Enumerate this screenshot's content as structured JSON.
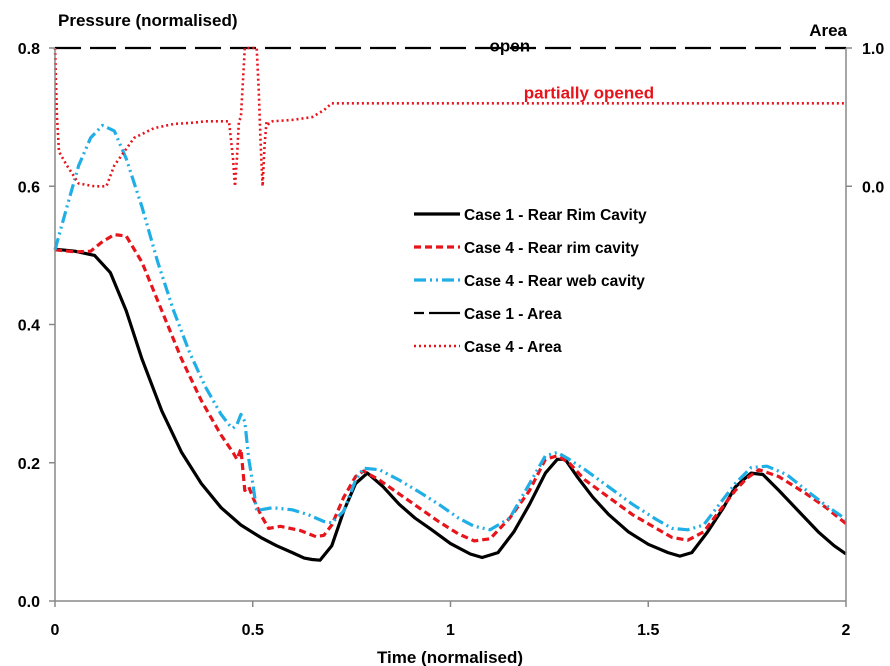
{
  "chart_data": {
    "type": "line",
    "ylabel_left": "Pressure (normalised)",
    "ylabel_right": "Area",
    "xlabel": "Time (normalised)",
    "xlim": [
      0,
      2
    ],
    "ylim": [
      0,
      0.8
    ],
    "y2lim": [
      0.0,
      1.0
    ],
    "y2_plot_min": -3.0,
    "x_ticks": [
      "0",
      "0.5",
      "1",
      "1.5",
      "2"
    ],
    "y_ticks": [
      "0.0",
      "0.2",
      "0.4",
      "0.6",
      "0.8"
    ],
    "y2_ticks": [
      "0.0",
      "1.0"
    ],
    "grid": false,
    "legend_position": "center-right",
    "annotations": [
      {
        "text": "open",
        "x": 1.15,
        "y": 0.795,
        "color": "#000000"
      },
      {
        "text": "partially opened",
        "x": 1.35,
        "y": 0.727,
        "color": "#e8141b"
      }
    ],
    "series": [
      {
        "name": "Case 1 - Rear Rim Cavity",
        "axis": "left",
        "color": "#000000",
        "dash": "",
        "width": 3.2,
        "x": [
          0,
          0.05,
          0.1,
          0.14,
          0.18,
          0.22,
          0.27,
          0.32,
          0.37,
          0.42,
          0.47,
          0.52,
          0.56,
          0.6,
          0.63,
          0.65,
          0.67,
          0.7,
          0.73,
          0.76,
          0.79,
          0.83,
          0.87,
          0.91,
          0.95,
          1.0,
          1.05,
          1.08,
          1.12,
          1.16,
          1.2,
          1.24,
          1.27,
          1.29,
          1.32,
          1.36,
          1.4,
          1.45,
          1.5,
          1.55,
          1.58,
          1.61,
          1.65,
          1.69,
          1.72,
          1.76,
          1.79,
          1.83,
          1.88,
          1.93,
          1.97,
          2.0
        ],
        "y": [
          0.509,
          0.506,
          0.5,
          0.475,
          0.42,
          0.35,
          0.275,
          0.215,
          0.17,
          0.135,
          0.11,
          0.092,
          0.08,
          0.07,
          0.062,
          0.06,
          0.059,
          0.08,
          0.13,
          0.17,
          0.185,
          0.165,
          0.14,
          0.12,
          0.104,
          0.083,
          0.068,
          0.063,
          0.07,
          0.1,
          0.14,
          0.185,
          0.205,
          0.205,
          0.18,
          0.15,
          0.125,
          0.1,
          0.082,
          0.07,
          0.065,
          0.07,
          0.1,
          0.135,
          0.165,
          0.185,
          0.183,
          0.16,
          0.13,
          0.1,
          0.08,
          0.068
        ]
      },
      {
        "name": "Case 4 - Rear rim cavity",
        "axis": "left",
        "color": "#e8141b",
        "dash": "7,4",
        "width": 3.2,
        "x": [
          0,
          0.05,
          0.09,
          0.12,
          0.15,
          0.18,
          0.22,
          0.27,
          0.32,
          0.37,
          0.42,
          0.45,
          0.46,
          0.47,
          0.48,
          0.49,
          0.5,
          0.52,
          0.54,
          0.57,
          0.62,
          0.66,
          0.68,
          0.7,
          0.73,
          0.76,
          0.78,
          0.82,
          0.87,
          0.92,
          0.97,
          1.02,
          1.06,
          1.1,
          1.15,
          1.2,
          1.24,
          1.27,
          1.3,
          1.34,
          1.4,
          1.46,
          1.52,
          1.56,
          1.6,
          1.64,
          1.68,
          1.72,
          1.75,
          1.78,
          1.83,
          1.9,
          1.95,
          2.0
        ],
        "y": [
          0.508,
          0.505,
          0.506,
          0.52,
          0.53,
          0.528,
          0.49,
          0.42,
          0.35,
          0.29,
          0.24,
          0.215,
          0.205,
          0.22,
          0.16,
          0.165,
          0.15,
          0.125,
          0.105,
          0.108,
          0.102,
          0.093,
          0.095,
          0.11,
          0.15,
          0.18,
          0.188,
          0.175,
          0.155,
          0.135,
          0.115,
          0.097,
          0.087,
          0.09,
          0.12,
          0.16,
          0.205,
          0.21,
          0.2,
          0.175,
          0.15,
          0.125,
          0.105,
          0.092,
          0.088,
          0.1,
          0.13,
          0.16,
          0.178,
          0.19,
          0.18,
          0.155,
          0.135,
          0.112
        ]
      },
      {
        "name": "Case 4 - Rear web cavity",
        "axis": "left",
        "color": "#20aee6",
        "dash": "12,4,2,4,2,4",
        "width": 3.2,
        "x": [
          0,
          0.03,
          0.06,
          0.09,
          0.12,
          0.15,
          0.18,
          0.22,
          0.26,
          0.3,
          0.34,
          0.38,
          0.42,
          0.44,
          0.45,
          0.46,
          0.47,
          0.48,
          0.49,
          0.5,
          0.51,
          0.52,
          0.55,
          0.6,
          0.64,
          0.68,
          0.7,
          0.73,
          0.76,
          0.78,
          0.82,
          0.87,
          0.92,
          0.97,
          1.02,
          1.06,
          1.1,
          1.15,
          1.2,
          1.24,
          1.27,
          1.3,
          1.34,
          1.4,
          1.46,
          1.52,
          1.56,
          1.6,
          1.64,
          1.68,
          1.72,
          1.76,
          1.8,
          1.85,
          1.9,
          1.95,
          2.0
        ],
        "y": [
          0.508,
          0.57,
          0.63,
          0.67,
          0.688,
          0.68,
          0.64,
          0.57,
          0.49,
          0.42,
          0.36,
          0.31,
          0.27,
          0.255,
          0.25,
          0.255,
          0.27,
          0.26,
          0.205,
          0.17,
          0.13,
          0.132,
          0.135,
          0.132,
          0.125,
          0.115,
          0.113,
          0.13,
          0.175,
          0.192,
          0.19,
          0.175,
          0.158,
          0.14,
          0.12,
          0.108,
          0.103,
          0.12,
          0.17,
          0.21,
          0.215,
          0.205,
          0.19,
          0.165,
          0.14,
          0.118,
          0.105,
          0.103,
          0.11,
          0.14,
          0.17,
          0.193,
          0.195,
          0.183,
          0.16,
          0.138,
          0.118
        ]
      },
      {
        "name": "Case 1 - Area",
        "axis": "right",
        "color": "#000000",
        "dash": "26,9",
        "width": 2.2,
        "x": [
          0,
          2
        ],
        "y": [
          1.0,
          1.0
        ]
      },
      {
        "name": "Case 4 - Area",
        "axis": "right",
        "color": "#e8141b",
        "dash": "2,3",
        "width": 2.6,
        "x": [
          0,
          0.005,
          0.01,
          0.03,
          0.06,
          0.1,
          0.12,
          0.13,
          0.15,
          0.2,
          0.25,
          0.3,
          0.35,
          0.38,
          0.4,
          0.44,
          0.45,
          0.455,
          0.46,
          0.465,
          0.47,
          0.48,
          0.49,
          0.5,
          0.51,
          0.515,
          0.52,
          0.525,
          0.53,
          0.535,
          0.54,
          0.55,
          0.6,
          0.65,
          0.68,
          0.7,
          0.75,
          1.0,
          1.5,
          2.0
        ],
        "y": [
          1.0,
          0.5,
          0.25,
          0.15,
          0.02,
          0.0,
          0.0,
          0.0,
          0.15,
          0.35,
          0.42,
          0.45,
          0.46,
          0.47,
          0.47,
          0.47,
          0.2,
          0.0,
          0.2,
          0.47,
          0.5,
          1.0,
          1.0,
          1.0,
          1.0,
          0.7,
          0.3,
          0.0,
          0.3,
          0.47,
          0.45,
          0.47,
          0.48,
          0.5,
          0.55,
          0.6,
          0.6,
          0.6,
          0.6,
          0.6
        ]
      }
    ]
  }
}
